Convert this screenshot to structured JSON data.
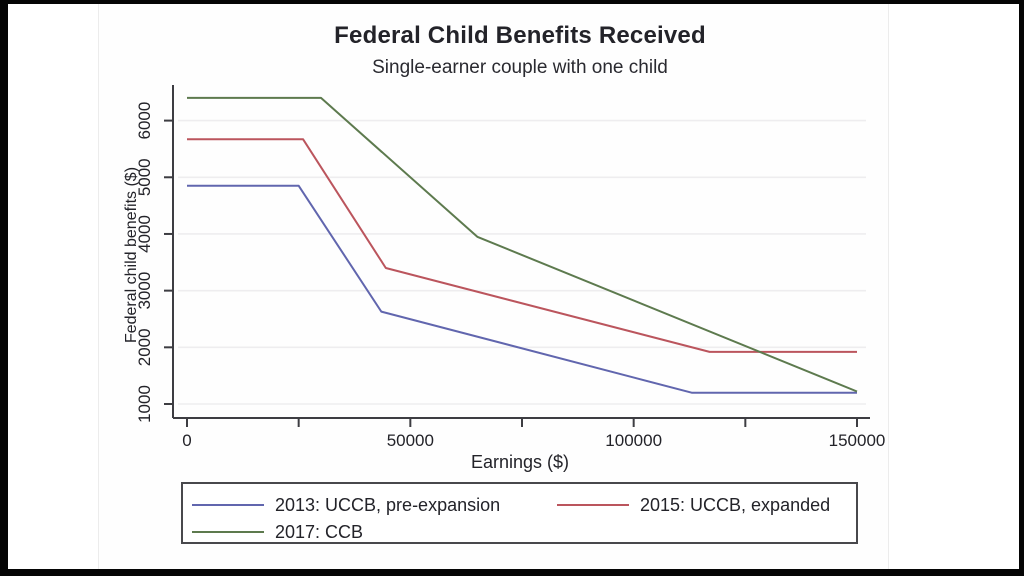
{
  "window": {
    "frame_color": "#050505",
    "canvas_color": "#ffffff"
  },
  "styles": {
    "axis_color": "#3d3d42",
    "text_color": "#232329",
    "grid_color": "#eeedef",
    "legend_border_color": "#48484c"
  },
  "chart_data": {
    "type": "line",
    "title": "Federal Child Benefits Received",
    "subtitle": "Single-earner couple with one child",
    "xlabel": "Earnings ($)",
    "ylabel": "Federal child benefits ($)",
    "x_axis": {
      "min": 0,
      "max": 150000,
      "major_ticks": [
        0,
        50000,
        100000,
        150000
      ],
      "major_tick_labels": [
        "0",
        "50000",
        "100000",
        "150000"
      ],
      "minor_ticks": [
        25000,
        75000,
        125000
      ]
    },
    "y_axis": {
      "min": 1000,
      "max": 6000,
      "ticks": [
        1000,
        2000,
        3000,
        4000,
        5000,
        6000
      ],
      "tick_labels": [
        "1000",
        "2000",
        "3000",
        "4000",
        "5000",
        "6000"
      ]
    },
    "grid": {
      "show": true,
      "orientation": "horizontal"
    },
    "legend_position": "bottom",
    "series": [
      {
        "name": "2013: UCCB, pre-expansion",
        "color": "#6166ae",
        "points": [
          [
            0,
            4850
          ],
          [
            25000,
            4850
          ],
          [
            43500,
            2630
          ],
          [
            113000,
            1200
          ],
          [
            150000,
            1200
          ]
        ]
      },
      {
        "name": "2015: UCCB, expanded",
        "color": "#bb555d",
        "points": [
          [
            0,
            5670
          ],
          [
            26000,
            5670
          ],
          [
            44500,
            3400
          ],
          [
            117000,
            1920
          ],
          [
            150000,
            1920
          ]
        ]
      },
      {
        "name": "2017: CCB",
        "color": "#5d7a4e",
        "points": [
          [
            0,
            6400
          ],
          [
            30000,
            6400
          ],
          [
            65000,
            3950
          ],
          [
            150000,
            1220
          ]
        ]
      }
    ]
  }
}
